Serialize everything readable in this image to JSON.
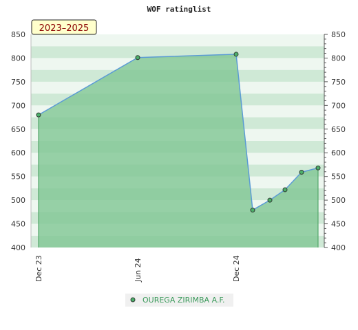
{
  "chart_data": {
    "type": "area",
    "title": "WOF ratinglist",
    "period_label": "2023–2025",
    "ylim": [
      400,
      850
    ],
    "y_ticks": [
      400,
      450,
      500,
      550,
      600,
      650,
      700,
      750,
      800,
      850
    ],
    "x_tick_labels": [
      "Dec 23",
      "Jun 24",
      "Dec 24"
    ],
    "series": [
      {
        "name": "OUREGA ZIRIMBA A.F.",
        "values": [
          680,
          801,
          808,
          479,
          500,
          522,
          559,
          568
        ]
      }
    ],
    "legend_position": "bottom-center",
    "colors": {
      "fill": "#7fc694",
      "line": "#5b9bd5",
      "marker": "#4caf6a",
      "band_light": "#eef7f0",
      "band_mid": "#cfe9d6"
    }
  }
}
